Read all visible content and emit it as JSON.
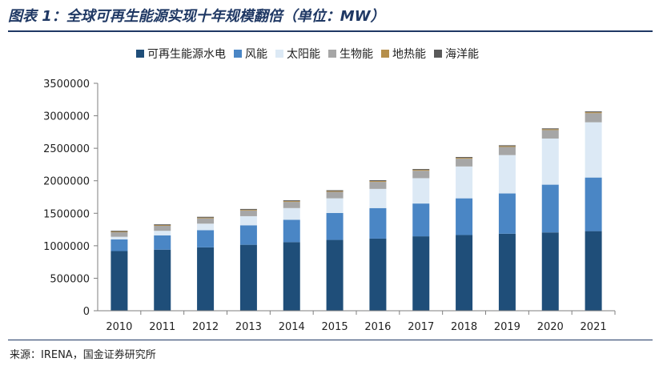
{
  "header": {
    "title": "图表 1：全球可再生能源实现十年规模翻倍（单位：MW）"
  },
  "footer": {
    "source": "来源：IRENA，国金证券研究所"
  },
  "chart_data": {
    "type": "bar",
    "stacked": true,
    "categories": [
      "2010",
      "2011",
      "2012",
      "2013",
      "2014",
      "2015",
      "2016",
      "2017",
      "2018",
      "2019",
      "2020",
      "2021"
    ],
    "series": [
      {
        "name": "可再生能源水电",
        "color": "#1f4e79",
        "values": [
          918000,
          940000,
          975000,
          1015000,
          1055000,
          1090000,
          1110000,
          1145000,
          1165000,
          1185000,
          1205000,
          1225000
        ]
      },
      {
        "name": "风能",
        "color": "#4a86c5",
        "values": [
          180000,
          220000,
          265000,
          300000,
          345000,
          415000,
          470000,
          505000,
          565000,
          620000,
          735000,
          825000
        ]
      },
      {
        "name": "太阳能",
        "color": "#dce9f5",
        "values": [
          40000,
          70000,
          100000,
          140000,
          180000,
          225000,
          295000,
          390000,
          490000,
          590000,
          710000,
          850000
        ]
      },
      {
        "name": "生物能",
        "color": "#a6a6a6",
        "values": [
          70000,
          77000,
          82000,
          88000,
          95000,
          100000,
          108000,
          115000,
          120000,
          125000,
          130000,
          140000
        ]
      },
      {
        "name": "地热能",
        "color": "#b58f4b",
        "values": [
          10000,
          10000,
          11000,
          11000,
          12000,
          12000,
          13000,
          13000,
          13000,
          14000,
          14000,
          15000
        ]
      },
      {
        "name": "海洋能",
        "color": "#595959",
        "values": [
          500,
          500,
          500,
          500,
          500,
          500,
          500,
          500,
          500,
          500,
          500,
          500
        ]
      }
    ],
    "yticks": [
      "0",
      "500000",
      "1000000",
      "1500000",
      "2000000",
      "2500000",
      "3000000",
      "3500000"
    ],
    "ylim": [
      0,
      3500000
    ],
    "legend_position": "top-center",
    "grid": false
  }
}
